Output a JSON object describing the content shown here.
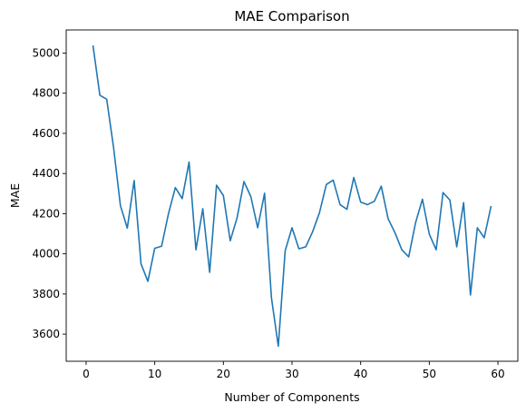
{
  "chart_data": {
    "type": "line",
    "title": "MAE Comparison",
    "xlabel": "Number of Components",
    "ylabel": "MAE",
    "xlim": [
      -2.9,
      62.9
    ],
    "ylim": [
      3465,
      5115
    ],
    "xticks": [
      0,
      10,
      20,
      30,
      40,
      50,
      60
    ],
    "yticks": [
      3600,
      3800,
      4000,
      4200,
      4400,
      4600,
      4800,
      5000
    ],
    "grid": false,
    "line_color": "#1f77b4",
    "series": [
      {
        "x": [
          1,
          2,
          3,
          4,
          5,
          6,
          7,
          8,
          9,
          10,
          11,
          12,
          13,
          14,
          15,
          16,
          17,
          18,
          19,
          20,
          21,
          22,
          23,
          24,
          25,
          26,
          27,
          28,
          29,
          30,
          31,
          32,
          33,
          34,
          35,
          36,
          37,
          38,
          39,
          40,
          41,
          42,
          43,
          44,
          45,
          46,
          47,
          48,
          49,
          50,
          51,
          52,
          53,
          54,
          55,
          56,
          57,
          58,
          59
        ],
        "values": [
          5038,
          4790,
          4770,
          4530,
          4240,
          4128,
          4365,
          3950,
          3863,
          4028,
          4038,
          4200,
          4330,
          4275,
          4457,
          4020,
          4225,
          3908,
          4342,
          4290,
          4065,
          4180,
          4360,
          4285,
          4130,
          4302,
          3782,
          3540,
          4015,
          4130,
          4025,
          4035,
          4110,
          4205,
          4345,
          4367,
          4245,
          4222,
          4380,
          4258,
          4245,
          4262,
          4337,
          4175,
          4105,
          4020,
          3985,
          4155,
          4272,
          4098,
          4020,
          4305,
          4268,
          4035,
          4255,
          3795,
          4130,
          4080,
          4238
        ]
      }
    ]
  }
}
